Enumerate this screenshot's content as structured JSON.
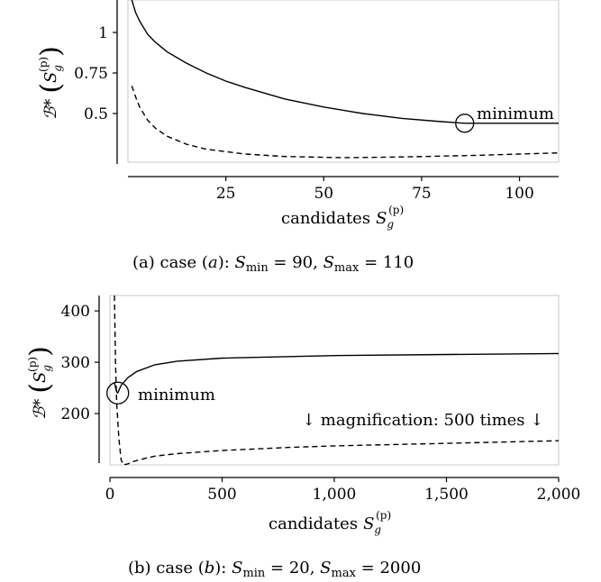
{
  "figure": {
    "y_axis_label_main": "ℬ*",
    "y_axis_label_S": "S",
    "y_axis_label_sub": "g",
    "y_axis_label_sup": "(p)",
    "x_axis_label_text": "candidates",
    "x_axis_label_S": "S",
    "x_axis_label_sub": "g",
    "x_axis_label_sup": "(p)"
  },
  "caption_a": {
    "prefix": "(a) case (",
    "case_letter": "a",
    "after_case": "): ",
    "smin_sub": "min",
    "smin_val": " = 90, ",
    "smax_sub": "max",
    "smax_val": " = 110"
  },
  "caption_b": {
    "prefix": "(b) case (",
    "case_letter": "b",
    "after_case": "): ",
    "smin_sub": "min",
    "smin_val": " = 20, ",
    "smax_sub": "max",
    "smax_val": " = 2000"
  },
  "chart_data": [
    {
      "type": "line",
      "xlim": [
        0,
        110
      ],
      "ylim": [
        0.2,
        1.2
      ],
      "x_ticks": [
        25,
        50,
        75,
        100
      ],
      "x_tick_labels": [
        "25",
        "50",
        "75",
        "100"
      ],
      "y_ticks": [
        0.5,
        0.75,
        1
      ],
      "y_tick_labels": [
        "0.5",
        "0.75",
        "1"
      ],
      "annotation": "minimum",
      "marker_point": {
        "x": 86,
        "y": 0.44
      },
      "series": [
        {
          "style": "solid",
          "x": [
            1,
            2,
            3,
            5,
            7,
            10,
            15,
            20,
            25,
            30,
            40,
            50,
            60,
            70,
            80,
            86,
            90,
            100,
            110
          ],
          "y": [
            1.2,
            1.12,
            1.07,
            0.99,
            0.94,
            0.88,
            0.81,
            0.75,
            0.7,
            0.66,
            0.59,
            0.54,
            0.5,
            0.47,
            0.45,
            0.44,
            0.44,
            0.44,
            0.44
          ]
        },
        {
          "style": "dashed",
          "x": [
            1,
            2,
            3,
            5,
            7,
            10,
            15,
            20,
            30,
            40,
            50,
            55,
            60,
            70,
            80,
            90,
            100,
            110
          ],
          "y": [
            0.67,
            0.6,
            0.54,
            0.46,
            0.41,
            0.36,
            0.31,
            0.28,
            0.25,
            0.235,
            0.23,
            0.228,
            0.229,
            0.232,
            0.237,
            0.243,
            0.25,
            0.257
          ]
        }
      ]
    },
    {
      "type": "line",
      "xlim": [
        0,
        2000
      ],
      "ylim": [
        100,
        430
      ],
      "x_ticks": [
        0,
        500,
        1000,
        1500,
        2000
      ],
      "x_tick_labels": [
        "0",
        "500",
        "1,000",
        "1,500",
        "2,000"
      ],
      "y_ticks": [
        200,
        300,
        400
      ],
      "y_tick_labels": [
        "200",
        "300",
        "400"
      ],
      "annotation": "minimum",
      "note": "↓ magnification: 500 times ↓",
      "marker_point": {
        "x": 35,
        "y": 240
      },
      "series": [
        {
          "style": "solid",
          "x": [
            20,
            30,
            35,
            50,
            80,
            120,
            200,
            300,
            500,
            800,
            1000,
            1500,
            2000
          ],
          "y": [
            260,
            242,
            240,
            255,
            270,
            282,
            295,
            302,
            308,
            311,
            313,
            315,
            317
          ]
        },
        {
          "style": "dashed",
          "x": [
            20,
            25,
            30,
            40,
            50,
            60,
            80,
            100,
            150,
            200,
            300,
            500,
            800,
            1000,
            1500,
            2000
          ],
          "y": [
            430,
            300,
            220,
            150,
            110,
            100,
            102,
            106,
            112,
            117,
            122,
            128,
            134,
            137,
            142,
            147
          ]
        }
      ]
    }
  ]
}
